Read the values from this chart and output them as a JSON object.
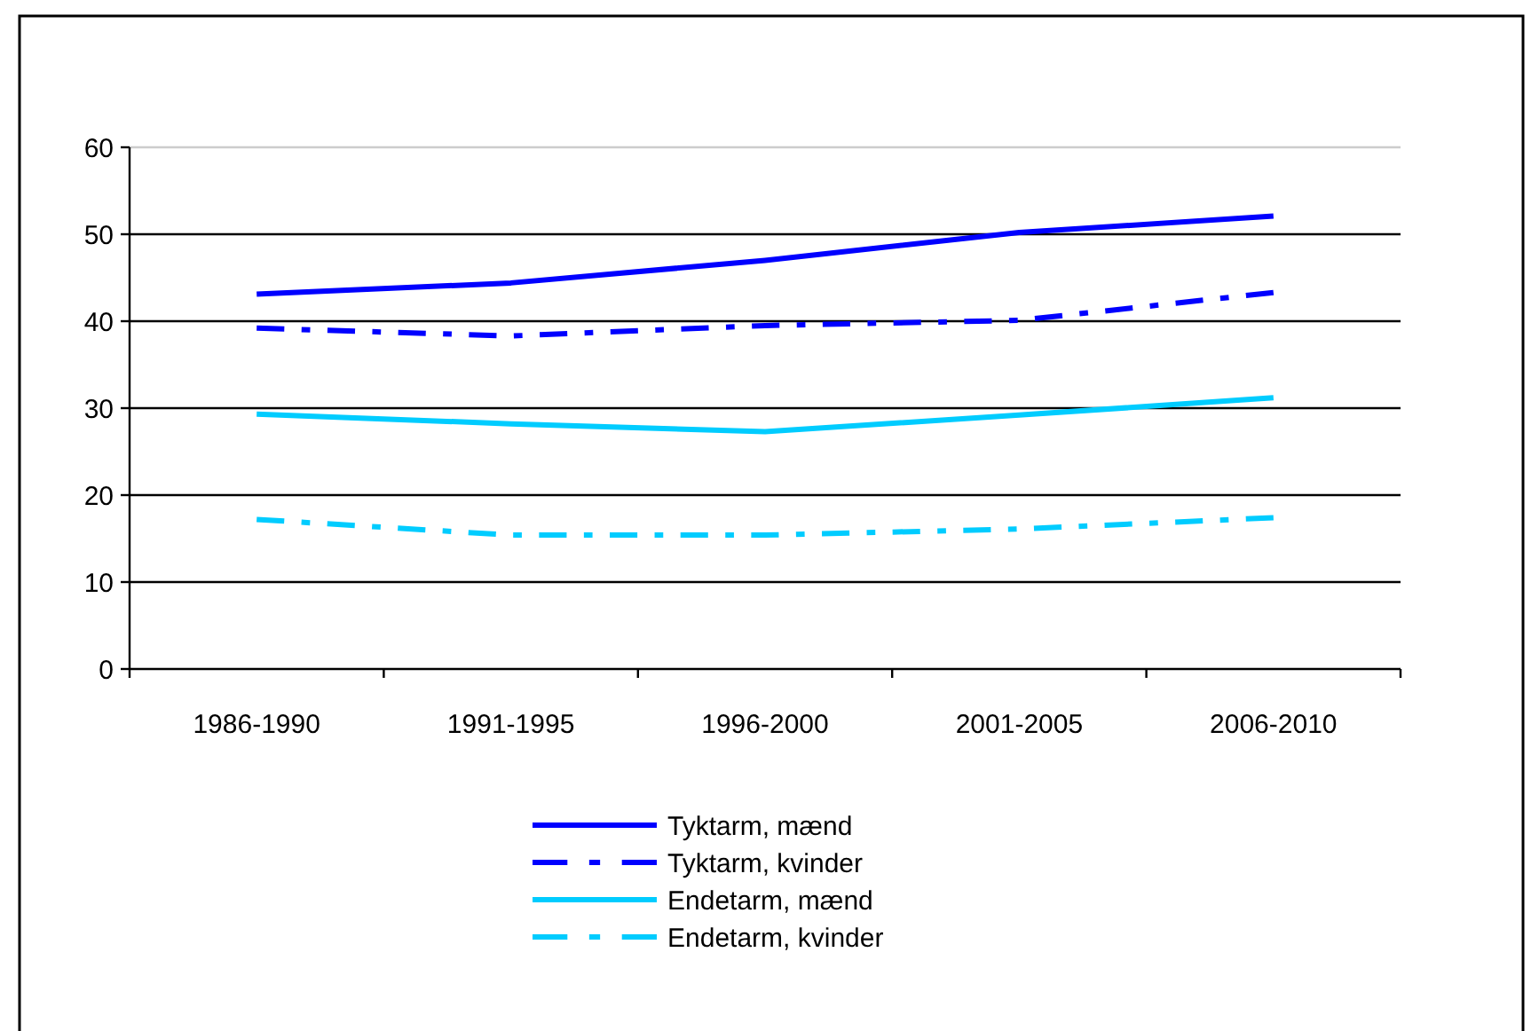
{
  "chart_data": {
    "type": "line",
    "categories": [
      "1986-1990",
      "1991-1995",
      "1996-2000",
      "2001-2005",
      "2006-2010"
    ],
    "series": [
      {
        "name": "Tyktarm, mænd",
        "color": "#0000ff",
        "line_style": "solid",
        "values": [
          43.1,
          44.4,
          47.0,
          50.2,
          52.1
        ]
      },
      {
        "name": "Tyktarm, kvinder",
        "color": "#0000ff",
        "line_style": "dashed",
        "values": [
          39.2,
          38.3,
          39.5,
          40.1,
          43.3
        ]
      },
      {
        "name": "Endetarm, mænd",
        "color": "#00ccff",
        "line_style": "solid",
        "values": [
          29.3,
          28.2,
          27.3,
          29.2,
          31.2
        ]
      },
      {
        "name": "Endetarm, kvinder",
        "color": "#00ccff",
        "line_style": "dashed",
        "values": [
          17.2,
          15.4,
          15.4,
          16.1,
          17.4
        ]
      }
    ],
    "ylim": [
      0,
      60
    ],
    "yticks": [
      0,
      10,
      20,
      30,
      40,
      50,
      60
    ],
    "grid": "y",
    "legend": "bottom",
    "marker": "none"
  }
}
